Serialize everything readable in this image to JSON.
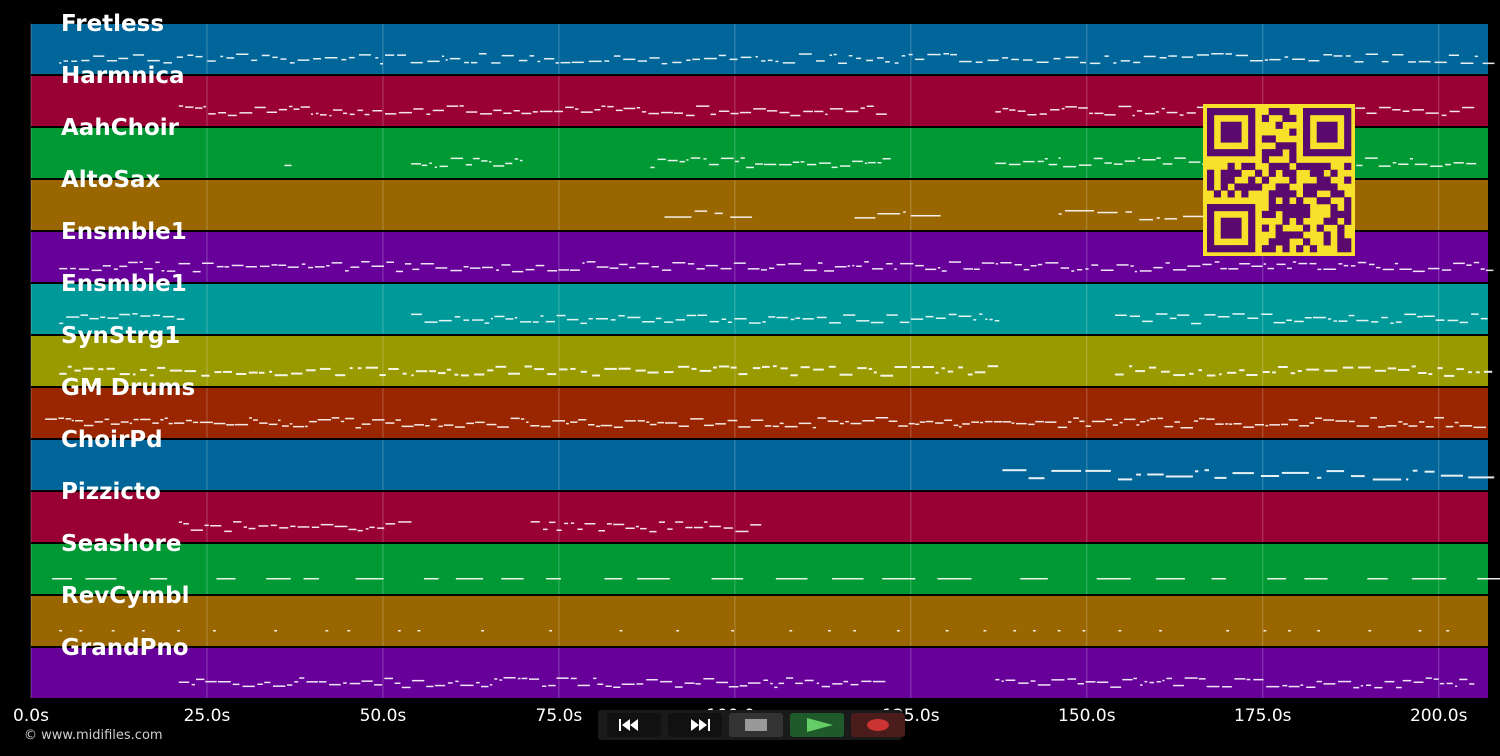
{
  "tracks": [
    {
      "name": "Fretless",
      "color": "#006699"
    },
    {
      "name": "Harmnica",
      "color": "#990033"
    },
    {
      "name": "AahChoir",
      "color": "#009933"
    },
    {
      "name": "AltoSax",
      "color": "#996600"
    },
    {
      "name": "Ensmble1",
      "color": "#660099"
    },
    {
      "name": "Ensmble1",
      "color": "#009999"
    },
    {
      "name": "SynStrg1",
      "color": "#999900"
    },
    {
      "name": "GM Drums",
      "color": "#992600"
    },
    {
      "name": "ChoirPd",
      "color": "#006699"
    },
    {
      "name": "Pizzicto",
      "color": "#990033"
    },
    {
      "name": "Seashore",
      "color": "#009933"
    },
    {
      "name": "RevCymbl",
      "color": "#996600"
    },
    {
      "name": "GrandPno",
      "color": "#660099"
    }
  ],
  "timeline": {
    "max_seconds": 207,
    "ticks": [
      "0.0s",
      "25.0s",
      "50.0s",
      "75.0s",
      "100.0s",
      "125.0s",
      "150.0s",
      "175.0s",
      "200.0s"
    ],
    "tick_values": [
      0,
      25,
      50,
      75,
      100,
      125,
      150,
      175,
      200
    ]
  },
  "transport": {
    "rewind_icon": "rewind-icon",
    "forward_icon": "fast-forward-icon",
    "stop_icon": "stop-icon",
    "play_icon": "play-icon",
    "record_icon": "record-icon",
    "play_color": "#66cc66",
    "record_color": "#cc3333"
  },
  "qr_code": {
    "foreground": "#5a0a6e",
    "background": "#f7e12a"
  },
  "copyright": "© www.midifiles.com"
}
